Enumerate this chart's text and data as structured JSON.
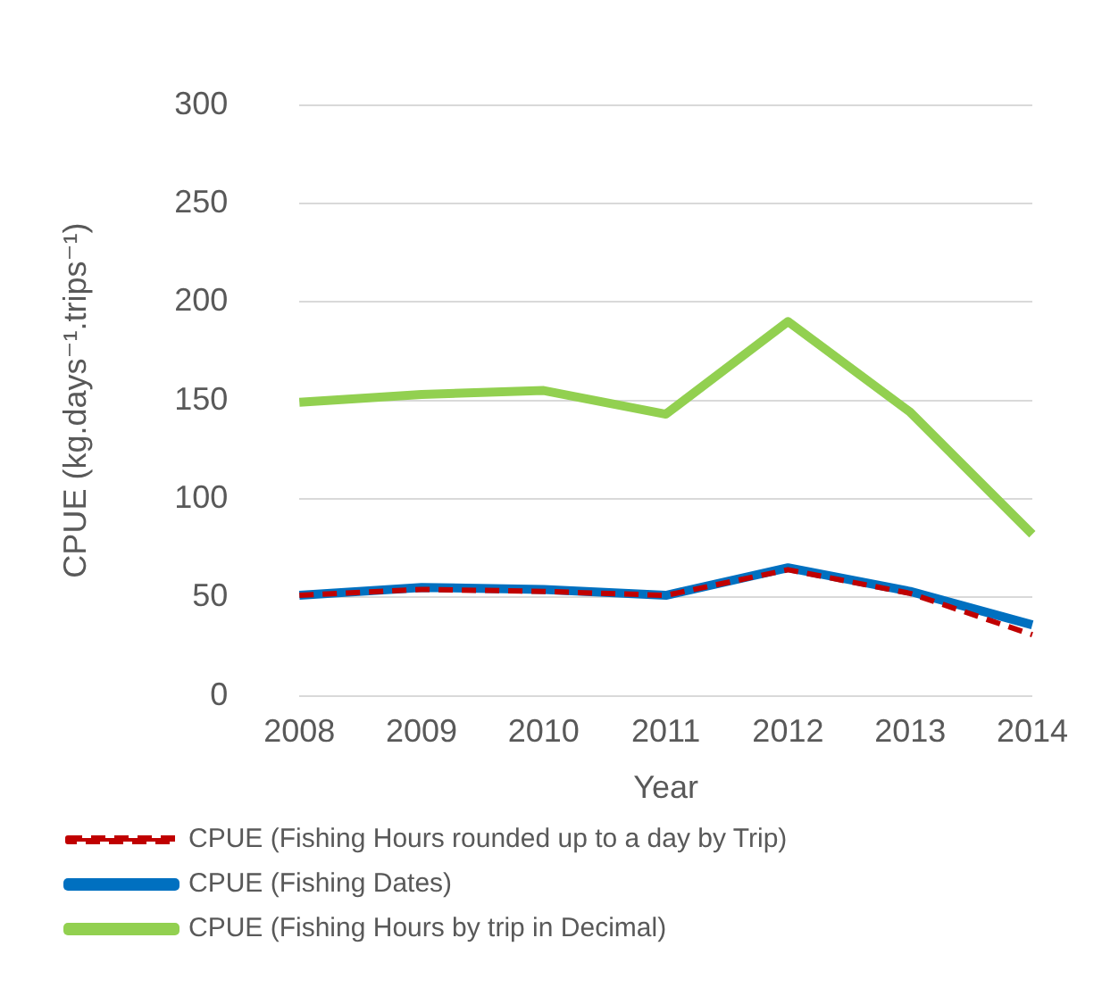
{
  "chart_data": {
    "type": "line",
    "xlabel": "Year",
    "ylabel": "CPUE (kg.days⁻¹.trips⁻¹)",
    "categories": [
      "2008",
      "2009",
      "2010",
      "2011",
      "2012",
      "2013",
      "2014"
    ],
    "series": [
      {
        "name": "CPUE (Fishing Dates)",
        "color": "#0070c0",
        "values": [
          51,
          55,
          54,
          51,
          65,
          53,
          36
        ]
      },
      {
        "name": "CPUE (Fishing Hours rounded up to a day by Trip)",
        "color": "#c00000",
        "line_style": "dashed",
        "values": [
          51,
          54,
          53,
          51,
          64,
          52,
          31
        ]
      },
      {
        "name": "CPUE (Fishing Hours by trip in Decimal)",
        "color": "#92d050",
        "values": [
          149,
          153,
          155,
          143,
          190,
          144,
          82
        ]
      }
    ],
    "ylim": [
      0,
      300
    ],
    "yticks": [
      0,
      50,
      100,
      150,
      200,
      250,
      300
    ],
    "grid": "y",
    "legend": "bottom",
    "marker": "none"
  }
}
